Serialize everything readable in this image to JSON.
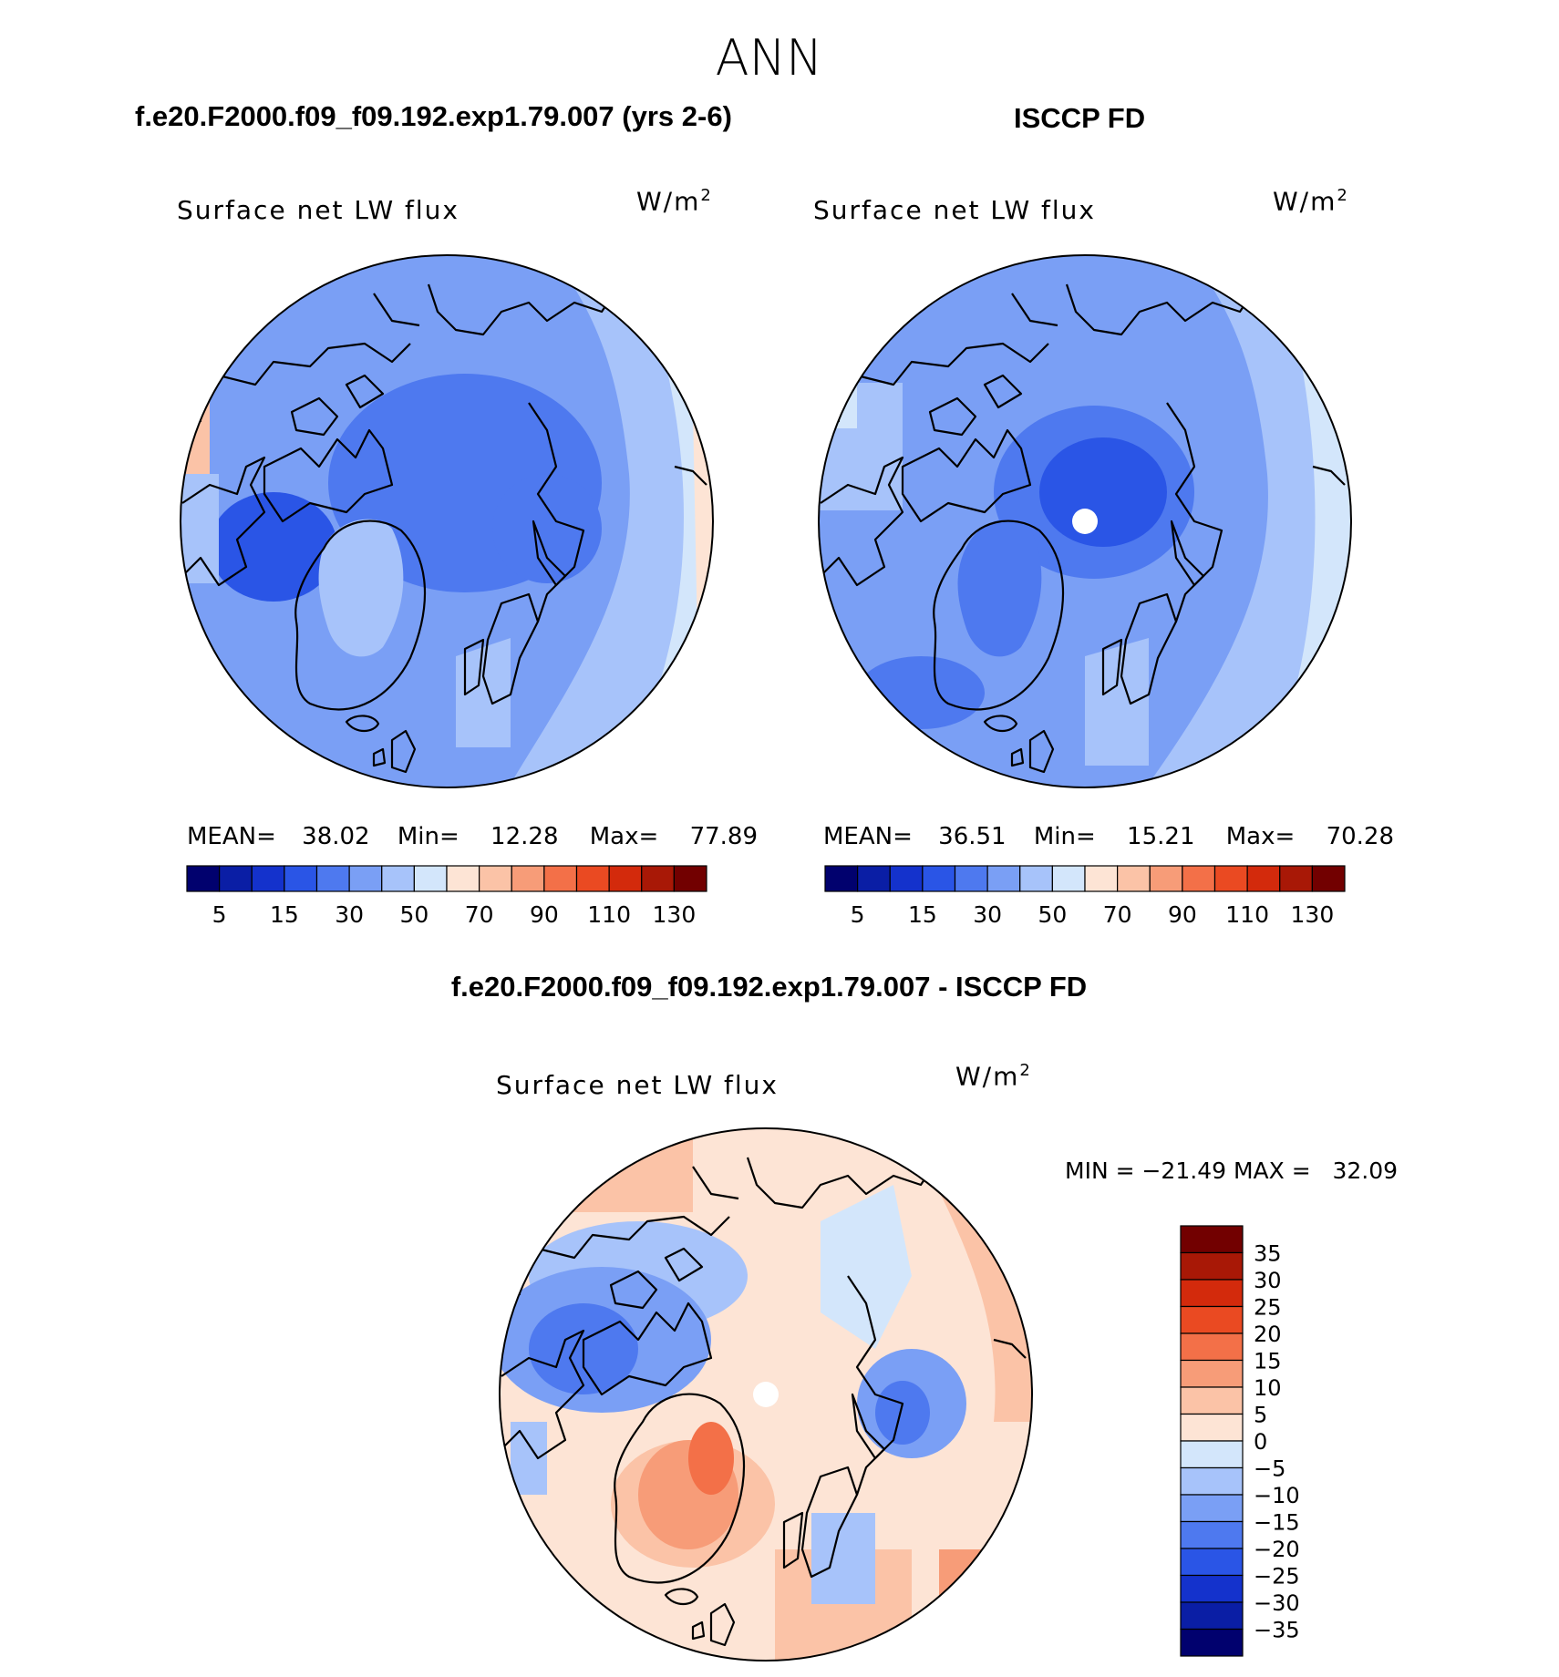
{
  "season": "ANN",
  "panels": [
    {
      "case": "f.e20.F2000.f09_f09.192.exp1.79.007 (yrs 2-6)",
      "variable": "Surface net LW flux",
      "units_base": "W/m",
      "units_exp": "2",
      "stats": {
        "mean_label": "MEAN=",
        "mean": "38.02",
        "min_label": "Min=",
        "min": "12.28",
        "max_label": "Max=",
        "max": "77.89"
      }
    },
    {
      "case": "ISCCP FD",
      "variable": "Surface net LW flux",
      "units_base": "W/m",
      "units_exp": "2",
      "stats": {
        "mean_label": "MEAN=",
        "mean": "36.51",
        "min_label": "Min=",
        "min": "15.21",
        "max_label": "Max=",
        "max": "70.28"
      }
    }
  ],
  "abs_colorbar": {
    "colors": [
      "#01016e",
      "#0a1ea5",
      "#1432cc",
      "#2a55e6",
      "#4e79ef",
      "#7a9ff5",
      "#a7c3fa",
      "#d3e6fb",
      "#fde4d5",
      "#fbc3a7",
      "#f79c78",
      "#f37048",
      "#ea4a22",
      "#d32a0c",
      "#a81806",
      "#720000"
    ],
    "labels": [
      "5",
      "15",
      "30",
      "50",
      "70",
      "90",
      "110",
      "130"
    ]
  },
  "diff": {
    "title": "f.e20.F2000.f09_f09.192.exp1.79.007 - ISCCP FD",
    "variable": "Surface net LW flux",
    "units_base": "W/m",
    "units_exp": "2",
    "minmax": "MIN = −21.49 MAX =   32.09"
  },
  "diff_colorbar": {
    "colors": [
      "#720000",
      "#a81806",
      "#d32a0c",
      "#ea4a22",
      "#f37048",
      "#f79c78",
      "#fbc3a7",
      "#fde4d5",
      "#d3e6fb",
      "#a7c3fa",
      "#7a9ff5",
      "#4e79ef",
      "#2a55e6",
      "#1432cc",
      "#0a1ea5",
      "#01016e"
    ],
    "labels": [
      "35",
      "30",
      "25",
      "20",
      "15",
      "10",
      "5",
      "0",
      "−5",
      "−10",
      "−15",
      "−20",
      "−25",
      "−30",
      "−35"
    ]
  }
}
